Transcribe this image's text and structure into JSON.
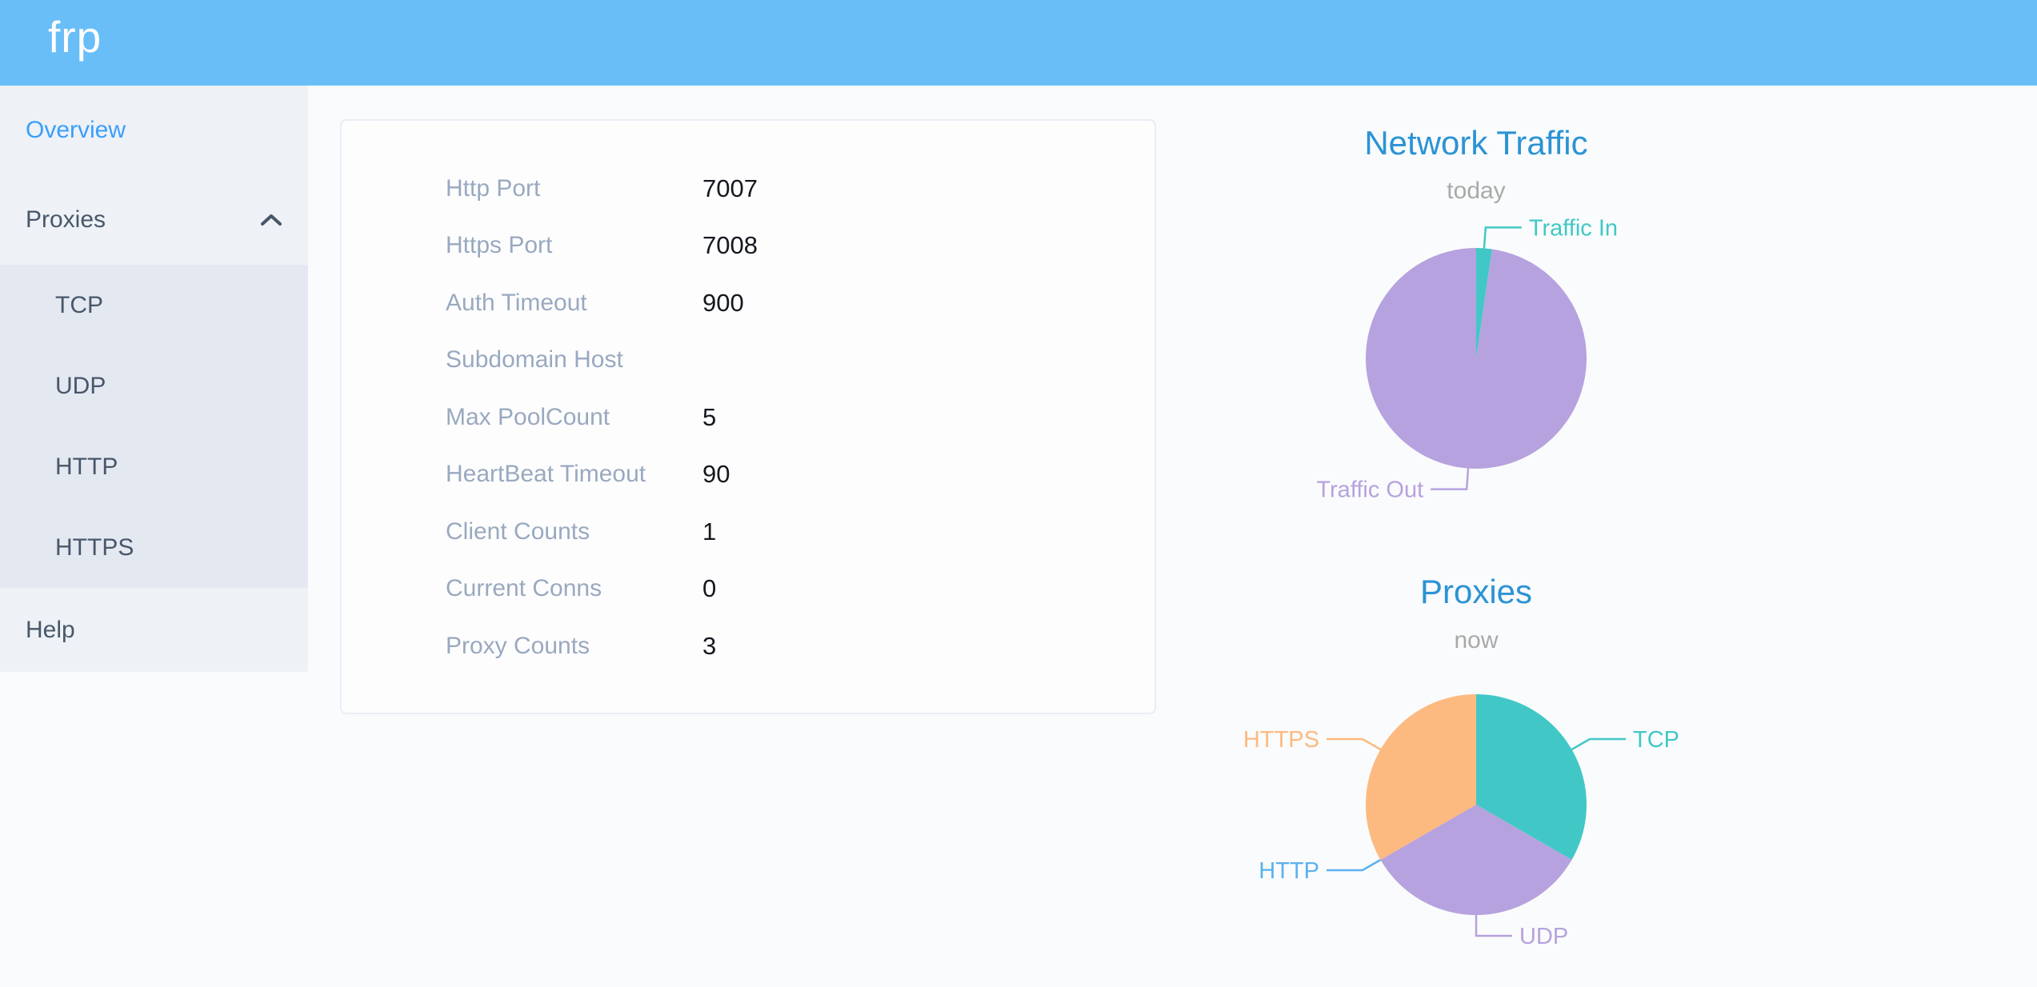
{
  "header": {
    "logo": "frp"
  },
  "sidebar": {
    "items": [
      {
        "label": "Overview",
        "active": true
      },
      {
        "label": "Proxies",
        "expanded": true,
        "children": [
          "TCP",
          "UDP",
          "HTTP",
          "HTTPS"
        ]
      },
      {
        "label": "Help"
      }
    ]
  },
  "server_info": {
    "rows": [
      {
        "label": "Http Port",
        "value": "7007"
      },
      {
        "label": "Https Port",
        "value": "7008"
      },
      {
        "label": "Auth Timeout",
        "value": "900"
      },
      {
        "label": "Subdomain Host",
        "value": ""
      },
      {
        "label": "Max PoolCount",
        "value": "5"
      },
      {
        "label": "HeartBeat Timeout",
        "value": "90"
      },
      {
        "label": "Client Counts",
        "value": "1"
      },
      {
        "label": "Current Conns",
        "value": "0"
      },
      {
        "label": "Proxy Counts",
        "value": "3"
      }
    ]
  },
  "chart_data": [
    {
      "type": "pie",
      "title": "Network Traffic",
      "subtitle": "today",
      "legend_position": "outside-labels",
      "series": [
        {
          "name": "Traffic In",
          "percent": 2.3,
          "color": "#41c8c6"
        },
        {
          "name": "Traffic Out",
          "percent": 97.7,
          "color": "#b6a2de"
        }
      ]
    },
    {
      "type": "pie",
      "title": "Proxies",
      "subtitle": "now",
      "legend_position": "outside-labels",
      "series": [
        {
          "name": "TCP",
          "value": 1,
          "color": "#41c8c6"
        },
        {
          "name": "UDP",
          "value": 1,
          "color": "#b6a2de"
        },
        {
          "name": "HTTP",
          "value": 0,
          "color": "#5ab1ef"
        },
        {
          "name": "HTTPS",
          "value": 1,
          "color": "#fcba80"
        }
      ]
    }
  ],
  "colors": {
    "header_bg": "#6abef8",
    "sidebar_bg": "#eef1f6",
    "submenu_bg": "#e4e8f1",
    "menu_active": "#3a9ffb",
    "menu_text": "#48576a",
    "chart_title": "#2b93d4",
    "chart_subtitle": "#a9a9a9",
    "info_label": "#99a9bf",
    "pie_teal": "#41c8c6",
    "pie_purple": "#b6a2de",
    "pie_blue": "#5ab1ef",
    "pie_orange": "#fcba80"
  }
}
